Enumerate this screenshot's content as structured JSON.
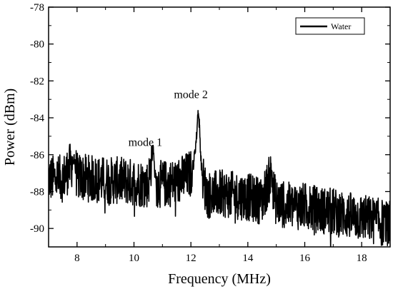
{
  "chart_data": {
    "type": "line",
    "xlabel": "Frequency (MHz)",
    "ylabel": "Power (dBm)",
    "xlim": [
      7,
      19
    ],
    "ylim": [
      -91,
      -78
    ],
    "xticks": [
      8,
      10,
      12,
      14,
      16,
      18
    ],
    "yticks": [
      -90,
      -88,
      -86,
      -84,
      -82,
      -80,
      -78
    ],
    "xtick_labels": [
      "8",
      "10",
      "12",
      "14",
      "16",
      "18"
    ],
    "ytick_labels": [
      "-90",
      "-88",
      "-86",
      "-84",
      "-82",
      "-80",
      "-78"
    ],
    "grid": false,
    "legend_position": "top-right",
    "annotations": [
      {
        "text": "mode 1",
        "x": 10.7,
        "y": -85.8
      },
      {
        "text": "mode 2",
        "x": 12.3,
        "y": -83.2
      }
    ],
    "series": [
      {
        "name": "Water",
        "color": "#000000",
        "x": [
          7.0,
          7.5,
          7.9,
          8.0,
          8.5,
          9.0,
          9.5,
          10.0,
          10.5,
          10.68,
          10.72,
          10.8,
          11.0,
          11.5,
          11.8,
          12.0,
          12.1,
          12.2,
          12.25,
          12.3,
          12.35,
          12.4,
          12.5,
          12.6,
          13.0,
          13.5,
          14.0,
          14.5,
          14.85,
          14.9,
          15.0,
          15.5,
          16.0,
          16.5,
          17.0,
          17.5,
          18.0,
          18.5,
          19.0
        ],
        "y": [
          -87.3,
          -87.3,
          -86.3,
          -87.2,
          -87.3,
          -87.4,
          -87.4,
          -87.5,
          -87.6,
          -85.6,
          -86.8,
          -87.6,
          -87.6,
          -87.5,
          -87.2,
          -87.0,
          -86.4,
          -85.0,
          -83.6,
          -84.4,
          -86.2,
          -87.1,
          -87.8,
          -88.2,
          -88.1,
          -88.2,
          -88.3,
          -88.5,
          -86.9,
          -88.0,
          -88.6,
          -88.8,
          -88.8,
          -89.0,
          -89.1,
          -89.3,
          -89.4,
          -89.6,
          -89.8
        ]
      }
    ]
  }
}
